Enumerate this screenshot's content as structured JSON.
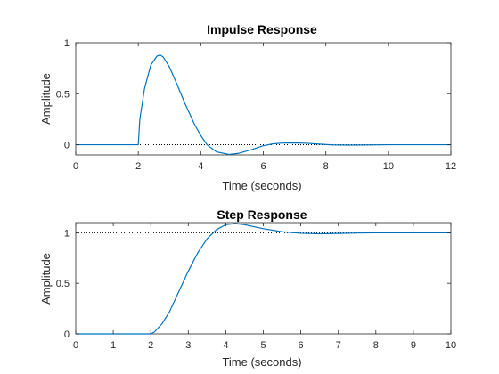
{
  "chart_data": [
    {
      "type": "line",
      "title": "Impulse Response",
      "xlabel": "Time (seconds)",
      "ylabel": "Amplitude",
      "xlim": [
        0,
        12
      ],
      "ylim": [
        -0.1,
        1.0
      ],
      "xticks": [
        0,
        2,
        4,
        6,
        8,
        10,
        12
      ],
      "xtick_labels": [
        "0",
        "2",
        "4",
        "6",
        "8",
        "10",
        "12"
      ],
      "yticks": [
        0,
        0.5,
        1
      ],
      "ytick_labels": [
        "0",
        "0.5",
        "1"
      ],
      "reference_line": 0,
      "grid": false,
      "series": [
        {
          "color": "#0072bd",
          "x": [
            0,
            2.0,
            2.05,
            2.2,
            2.4,
            2.6,
            2.7,
            2.8,
            3.0,
            3.2,
            3.5,
            3.8,
            4.0,
            4.2,
            4.5,
            4.9,
            5.2,
            5.6,
            6.0,
            6.3,
            6.6,
            7.0,
            7.4,
            7.8,
            8.2,
            8.7,
            9.2,
            10.0,
            11.0,
            12.0
          ],
          "y": [
            0,
            0,
            0.25,
            0.55,
            0.78,
            0.87,
            0.88,
            0.86,
            0.76,
            0.62,
            0.4,
            0.2,
            0.09,
            0.0,
            -0.07,
            -0.095,
            -0.085,
            -0.05,
            -0.01,
            0.008,
            0.016,
            0.018,
            0.014,
            0.006,
            -0.002,
            -0.004,
            -0.003,
            0,
            0,
            0
          ]
        }
      ]
    },
    {
      "type": "line",
      "title": "Step Response",
      "xlabel": "Time (seconds)",
      "ylabel": "Amplitude",
      "xlim": [
        0,
        10
      ],
      "ylim": [
        0,
        1.1
      ],
      "xticks": [
        0,
        1,
        2,
        3,
        4,
        5,
        6,
        7,
        8,
        9,
        10
      ],
      "xtick_labels": [
        "0",
        "1",
        "2",
        "3",
        "4",
        "5",
        "6",
        "7",
        "8",
        "9",
        "10"
      ],
      "yticks": [
        0,
        0.5,
        1
      ],
      "ytick_labels": [
        "0",
        "0.5",
        "1"
      ],
      "reference_line": 1,
      "grid": false,
      "series": [
        {
          "color": "#0072bd",
          "x": [
            0,
            2.0,
            2.1,
            2.3,
            2.5,
            2.75,
            3.0,
            3.25,
            3.5,
            3.75,
            4.0,
            4.25,
            4.5,
            4.75,
            5.0,
            5.5,
            6.0,
            6.5,
            7.0,
            7.5,
            8.0,
            9.0,
            10.0
          ],
          "y": [
            0,
            0,
            0.02,
            0.1,
            0.22,
            0.42,
            0.62,
            0.8,
            0.94,
            1.03,
            1.08,
            1.09,
            1.08,
            1.06,
            1.04,
            1.01,
            0.995,
            0.99,
            0.993,
            0.997,
            1.0,
            1.0,
            1.0
          ]
        }
      ]
    }
  ]
}
